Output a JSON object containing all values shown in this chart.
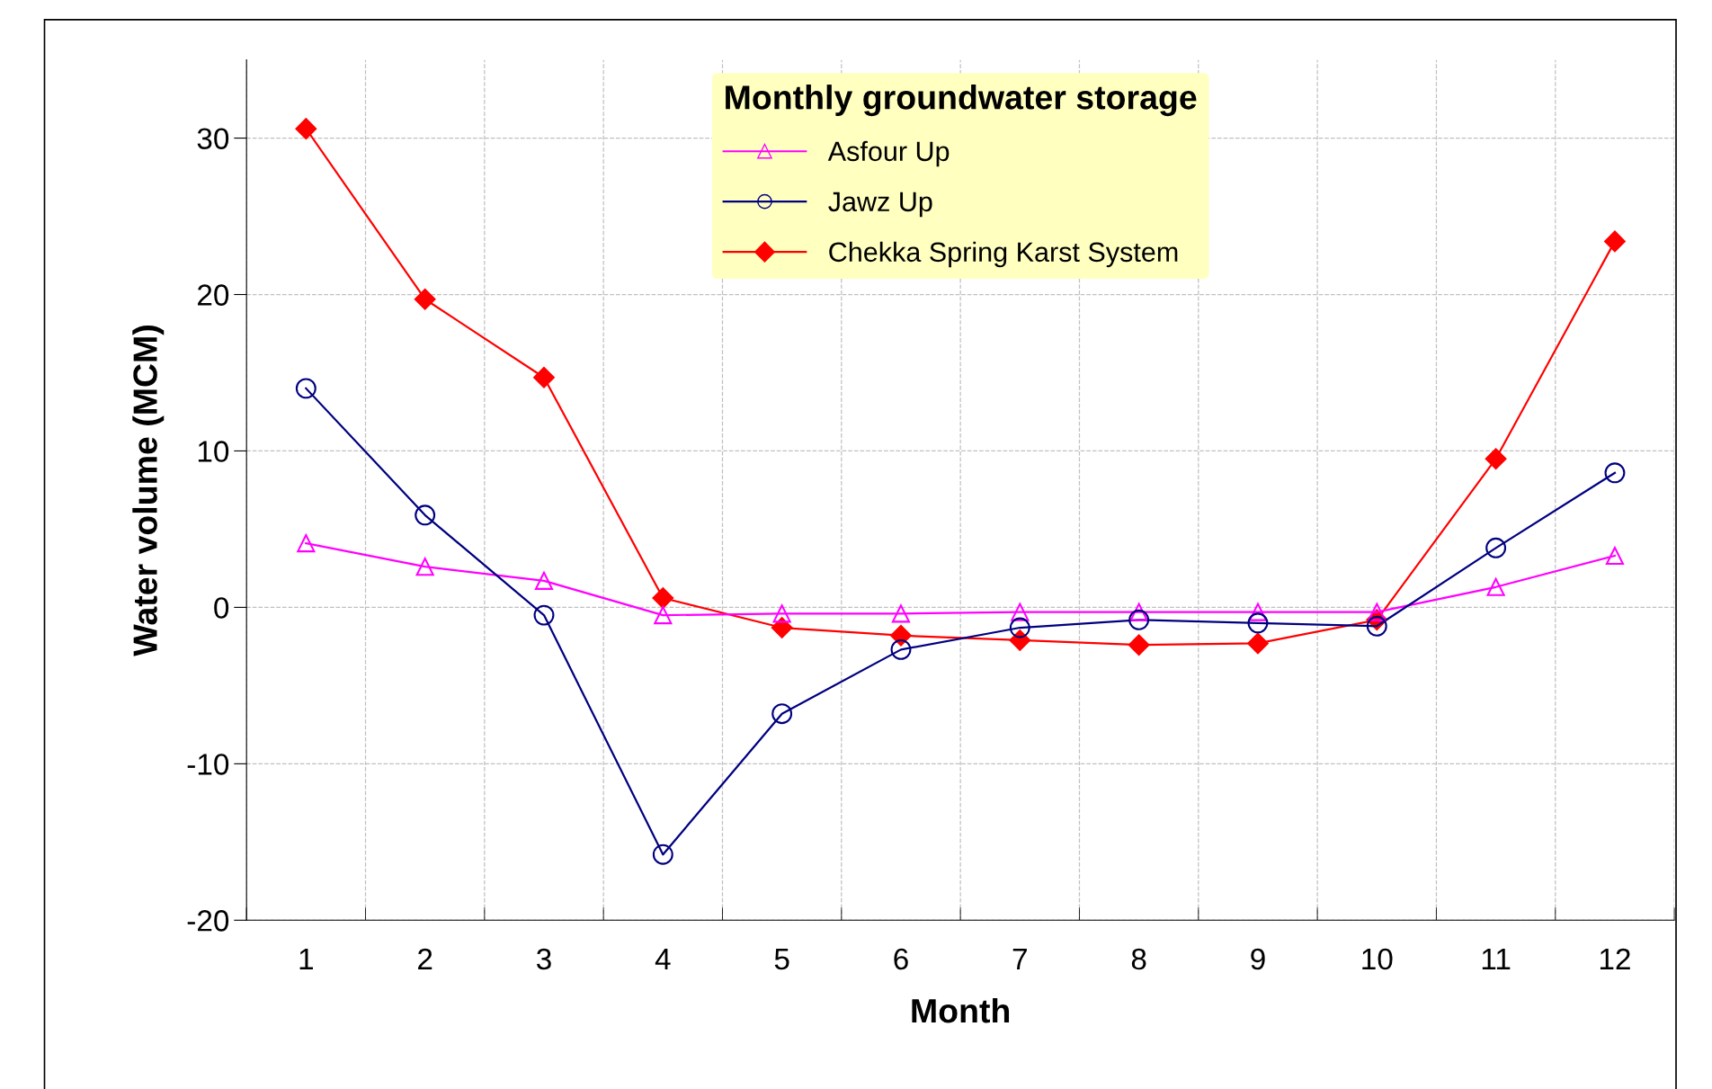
{
  "chart_data": {
    "type": "line",
    "xlabel": "Month",
    "ylabel": "Water volume (MCM)",
    "legend_title": "Monthly groundwater storage",
    "categories": [
      "1",
      "2",
      "3",
      "4",
      "5",
      "6",
      "7",
      "8",
      "9",
      "10",
      "11",
      "12"
    ],
    "series": [
      {
        "name": "Asfour Up",
        "color": "#ff00ff",
        "marker": "triangle",
        "values": [
          4.1,
          2.6,
          1.7,
          -0.5,
          -0.4,
          -0.4,
          -0.3,
          -0.3,
          -0.3,
          -0.3,
          1.3,
          3.3
        ]
      },
      {
        "name": "Jawz Up",
        "color": "#000080",
        "marker": "circle",
        "values": [
          14.0,
          5.9,
          -0.5,
          -15.8,
          -6.8,
          -2.7,
          -1.3,
          -0.8,
          -1.0,
          -1.2,
          3.8,
          8.6
        ]
      },
      {
        "name": "Chekka Spring Karst System",
        "color": "#ff0000",
        "marker": "diamond",
        "values": [
          30.6,
          19.7,
          14.7,
          0.6,
          -1.3,
          -1.8,
          -2.1,
          -2.4,
          -2.3,
          -0.8,
          9.5,
          23.4
        ]
      }
    ],
    "ylim": [
      -20,
      35
    ],
    "yticks": [
      -20,
      -10,
      0,
      10,
      20,
      30
    ],
    "grid": true,
    "legend": "top",
    "line_style": "solid"
  }
}
